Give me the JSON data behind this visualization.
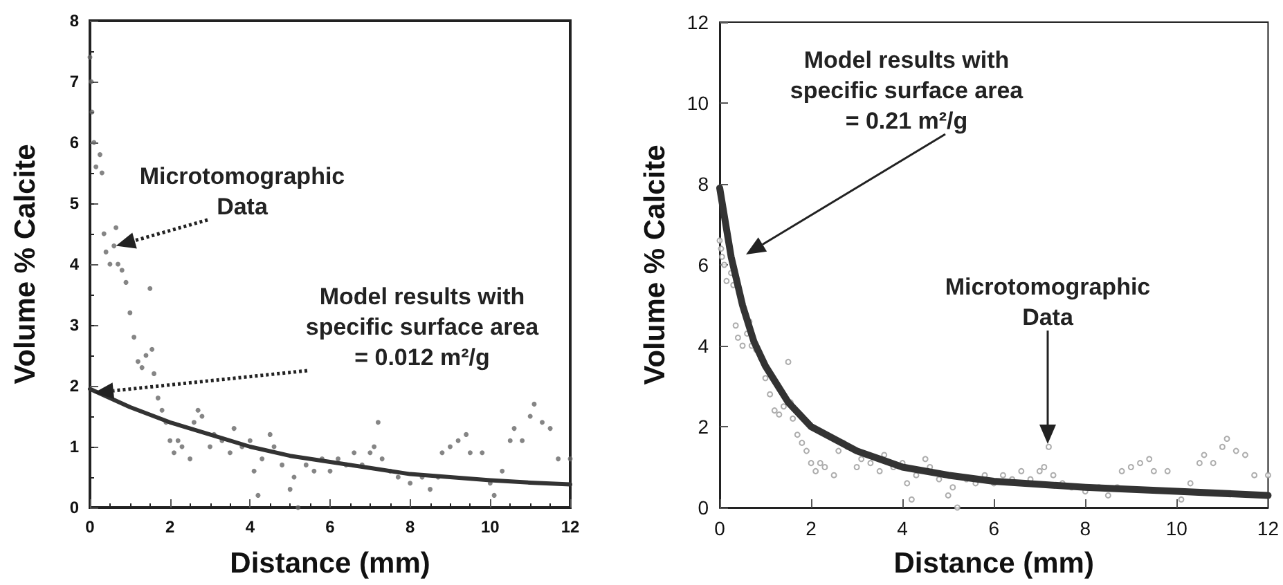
{
  "chart_data": [
    {
      "type": "scatter",
      "xlabel": "Distance (mm)",
      "ylabel": "Volume % Calcite",
      "xlim": [
        0,
        12
      ],
      "ylim": [
        0,
        8
      ],
      "xticks": [
        0,
        2,
        4,
        6,
        8,
        10,
        12
      ],
      "yticks": [
        0,
        1,
        2,
        3,
        4,
        5,
        6,
        7,
        8
      ],
      "grid": false,
      "marker": "circle",
      "annotations": [
        {
          "text": "Microtomographic Data",
          "x": 0.65,
          "y": 4.3
        },
        "Model results with specific surface area = 0.012 m²/g"
      ],
      "series": [
        {
          "color": "#666666",
          "x": [
            0,
            0.03,
            0.05,
            0.1,
            0.15,
            0.25,
            0.3,
            0.35,
            0.4,
            0.5,
            0.6,
            0.65,
            0.7,
            0.8,
            0.9,
            1.0,
            1.1,
            1.2,
            1.3,
            1.4,
            1.5,
            1.55,
            1.6,
            1.7,
            1.8,
            1.9,
            2.0,
            2.1,
            2.2,
            2.3,
            2.5,
            2.6,
            2.7,
            2.8,
            3.0,
            3.1,
            3.3,
            3.5,
            3.6,
            3.8,
            4.0,
            4.1,
            4.2,
            4.3,
            4.5,
            4.6,
            4.8,
            5.0,
            5.1,
            5.2,
            5.4,
            5.6,
            5.8,
            6.0,
            6.2,
            6.4,
            6.6,
            6.8,
            7.0,
            7.1,
            7.2,
            7.3,
            7.5,
            7.7,
            8.0,
            8.3,
            8.5,
            8.7,
            8.8,
            9.0,
            9.2,
            9.4,
            9.5,
            9.8,
            10.0,
            10.1,
            10.3,
            10.5,
            10.6,
            10.8,
            11.0,
            11.1,
            11.3,
            11.5,
            11.7,
            12.0
          ],
          "values": [
            7.4,
            7.0,
            6.5,
            6.0,
            5.6,
            5.8,
            5.5,
            4.5,
            4.2,
            4.0,
            4.3,
            4.6,
            4.0,
            3.9,
            3.7,
            3.2,
            2.8,
            2.4,
            2.3,
            2.5,
            3.6,
            2.6,
            2.2,
            1.8,
            1.6,
            1.4,
            1.1,
            0.9,
            1.1,
            1.0,
            0.8,
            1.4,
            1.6,
            1.5,
            1.0,
            1.2,
            1.1,
            0.9,
            1.3,
            1.0,
            1.1,
            0.6,
            0.2,
            0.8,
            1.2,
            1.0,
            0.7,
            0.3,
            0.5,
            0.0,
            0.7,
            0.6,
            0.8,
            0.6,
            0.8,
            0.7,
            0.9,
            0.7,
            0.9,
            1.0,
            1.4,
            0.8,
            0.6,
            0.5,
            0.4,
            0.5,
            0.3,
            0.5,
            0.9,
            1.0,
            1.1,
            1.2,
            0.9,
            0.9,
            0.4,
            0.2,
            0.6,
            1.1,
            1.3,
            1.1,
            1.5,
            1.7,
            1.4,
            1.3,
            0.8,
            0.8
          ]
        },
        {
          "type": "line",
          "color": "#333333",
          "marker": "none",
          "x": [
            0,
            1,
            2,
            3,
            4,
            5,
            6,
            7,
            8,
            9,
            10,
            11,
            12
          ],
          "values": [
            1.95,
            1.65,
            1.4,
            1.2,
            1.0,
            0.85,
            0.75,
            0.65,
            0.55,
            0.5,
            0.45,
            0.41,
            0.38
          ]
        }
      ]
    },
    {
      "type": "scatter",
      "xlabel": "Distance (mm)",
      "ylabel": "Volume % Calcite",
      "xlim": [
        0,
        12
      ],
      "ylim": [
        0,
        12
      ],
      "xticks": [
        0,
        2,
        4,
        6,
        8,
        10,
        12
      ],
      "yticks": [
        0,
        2,
        4,
        6,
        8,
        10,
        12
      ],
      "grid": false,
      "marker": "circle",
      "annotations": [
        "Model results with specific surface area = 0.21 m²/g",
        "Microtomographic Data"
      ],
      "series": [
        {
          "color": "#999999",
          "x": [
            0,
            0.03,
            0.05,
            0.1,
            0.15,
            0.25,
            0.3,
            0.35,
            0.4,
            0.5,
            0.6,
            0.65,
            0.7,
            0.8,
            0.9,
            1.0,
            1.1,
            1.2,
            1.3,
            1.4,
            1.5,
            1.55,
            1.6,
            1.7,
            1.8,
            1.9,
            2.0,
            2.1,
            2.2,
            2.3,
            2.5,
            2.6,
            2.7,
            2.8,
            3.0,
            3.1,
            3.3,
            3.5,
            3.6,
            3.8,
            4.0,
            4.1,
            4.2,
            4.3,
            4.5,
            4.6,
            4.8,
            5.0,
            5.1,
            5.2,
            5.4,
            5.6,
            5.8,
            6.0,
            6.2,
            6.4,
            6.6,
            6.8,
            7.0,
            7.1,
            7.2,
            7.3,
            7.5,
            7.7,
            8.0,
            8.3,
            8.5,
            8.7,
            8.8,
            9.0,
            9.2,
            9.4,
            9.5,
            9.8,
            10.0,
            10.1,
            10.3,
            10.5,
            10.6,
            10.8,
            11.0,
            11.1,
            11.3,
            11.5,
            11.7,
            12.0
          ],
          "values": [
            6.6,
            6.4,
            6.2,
            6.0,
            5.6,
            5.8,
            5.5,
            4.5,
            4.2,
            4.0,
            4.3,
            4.6,
            4.0,
            3.9,
            3.7,
            3.2,
            2.8,
            2.4,
            2.3,
            2.5,
            3.6,
            2.6,
            2.2,
            1.8,
            1.6,
            1.4,
            1.1,
            0.9,
            1.1,
            1.0,
            0.8,
            1.4,
            1.6,
            1.5,
            1.0,
            1.2,
            1.1,
            0.9,
            1.3,
            1.0,
            1.1,
            0.6,
            0.2,
            0.8,
            1.2,
            1.0,
            0.7,
            0.3,
            0.5,
            0.0,
            0.7,
            0.6,
            0.8,
            0.6,
            0.8,
            0.7,
            0.9,
            0.7,
            0.9,
            1.0,
            1.5,
            0.8,
            0.6,
            0.5,
            0.4,
            0.5,
            0.3,
            0.5,
            0.9,
            1.0,
            1.1,
            1.2,
            0.9,
            0.9,
            null,
            0.2,
            0.6,
            1.1,
            1.3,
            1.1,
            1.5,
            1.7,
            1.4,
            1.3,
            0.8,
            0.8
          ]
        },
        {
          "type": "line",
          "color": "#333333",
          "marker": "none",
          "x": [
            0,
            0.25,
            0.5,
            0.75,
            1,
            1.5,
            2,
            3,
            4,
            5,
            6,
            8,
            10,
            12
          ],
          "values": [
            7.9,
            6.2,
            5.0,
            4.1,
            3.5,
            2.6,
            2.0,
            1.4,
            1.0,
            0.8,
            0.65,
            0.5,
            0.4,
            0.3
          ]
        }
      ]
    }
  ]
}
